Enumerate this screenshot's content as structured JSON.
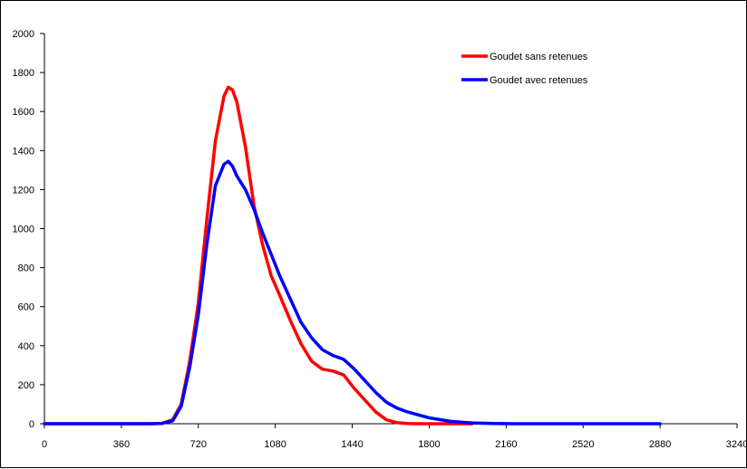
{
  "chart_data": {
    "type": "line",
    "title": "",
    "xlabel": "",
    "ylabel": "",
    "xlim": [
      0,
      3240
    ],
    "ylim": [
      0,
      2000
    ],
    "x_ticks": [
      0,
      360,
      720,
      1080,
      1440,
      1800,
      2160,
      2520,
      2880,
      3240
    ],
    "y_ticks": [
      0,
      200,
      400,
      600,
      800,
      1000,
      1200,
      1400,
      1600,
      1800,
      2000
    ],
    "grid": false,
    "legend_position": "top-right",
    "series": [
      {
        "name": "Goudet sans retenues",
        "color": "#ff0000",
        "x": [
          0,
          500,
          550,
          600,
          640,
          680,
          720,
          760,
          800,
          840,
          860,
          880,
          900,
          940,
          980,
          1020,
          1060,
          1100,
          1150,
          1200,
          1250,
          1300,
          1350,
          1400,
          1450,
          1500,
          1550,
          1600,
          1650,
          1700,
          1750,
          1800,
          1850,
          1900,
          2000
        ],
        "y": [
          0,
          0,
          2,
          20,
          100,
          320,
          620,
          1050,
          1450,
          1680,
          1725,
          1710,
          1650,
          1420,
          1120,
          920,
          760,
          660,
          530,
          410,
          320,
          280,
          270,
          250,
          180,
          120,
          60,
          20,
          5,
          1,
          0,
          0,
          0,
          0,
          0
        ]
      },
      {
        "name": "Goudet avec retenues",
        "color": "#0000ff",
        "x": [
          0,
          500,
          550,
          600,
          640,
          680,
          720,
          760,
          800,
          840,
          860,
          880,
          900,
          940,
          980,
          1020,
          1060,
          1100,
          1150,
          1200,
          1250,
          1300,
          1350,
          1400,
          1450,
          1500,
          1550,
          1600,
          1650,
          1700,
          1750,
          1800,
          1900,
          2000,
          2100,
          2200,
          2880
        ],
        "y": [
          0,
          0,
          2,
          15,
          90,
          290,
          560,
          920,
          1220,
          1330,
          1345,
          1320,
          1270,
          1200,
          1100,
          980,
          870,
          760,
          640,
          520,
          440,
          380,
          350,
          330,
          280,
          220,
          160,
          110,
          80,
          60,
          45,
          30,
          12,
          4,
          1,
          0,
          0
        ]
      }
    ]
  }
}
